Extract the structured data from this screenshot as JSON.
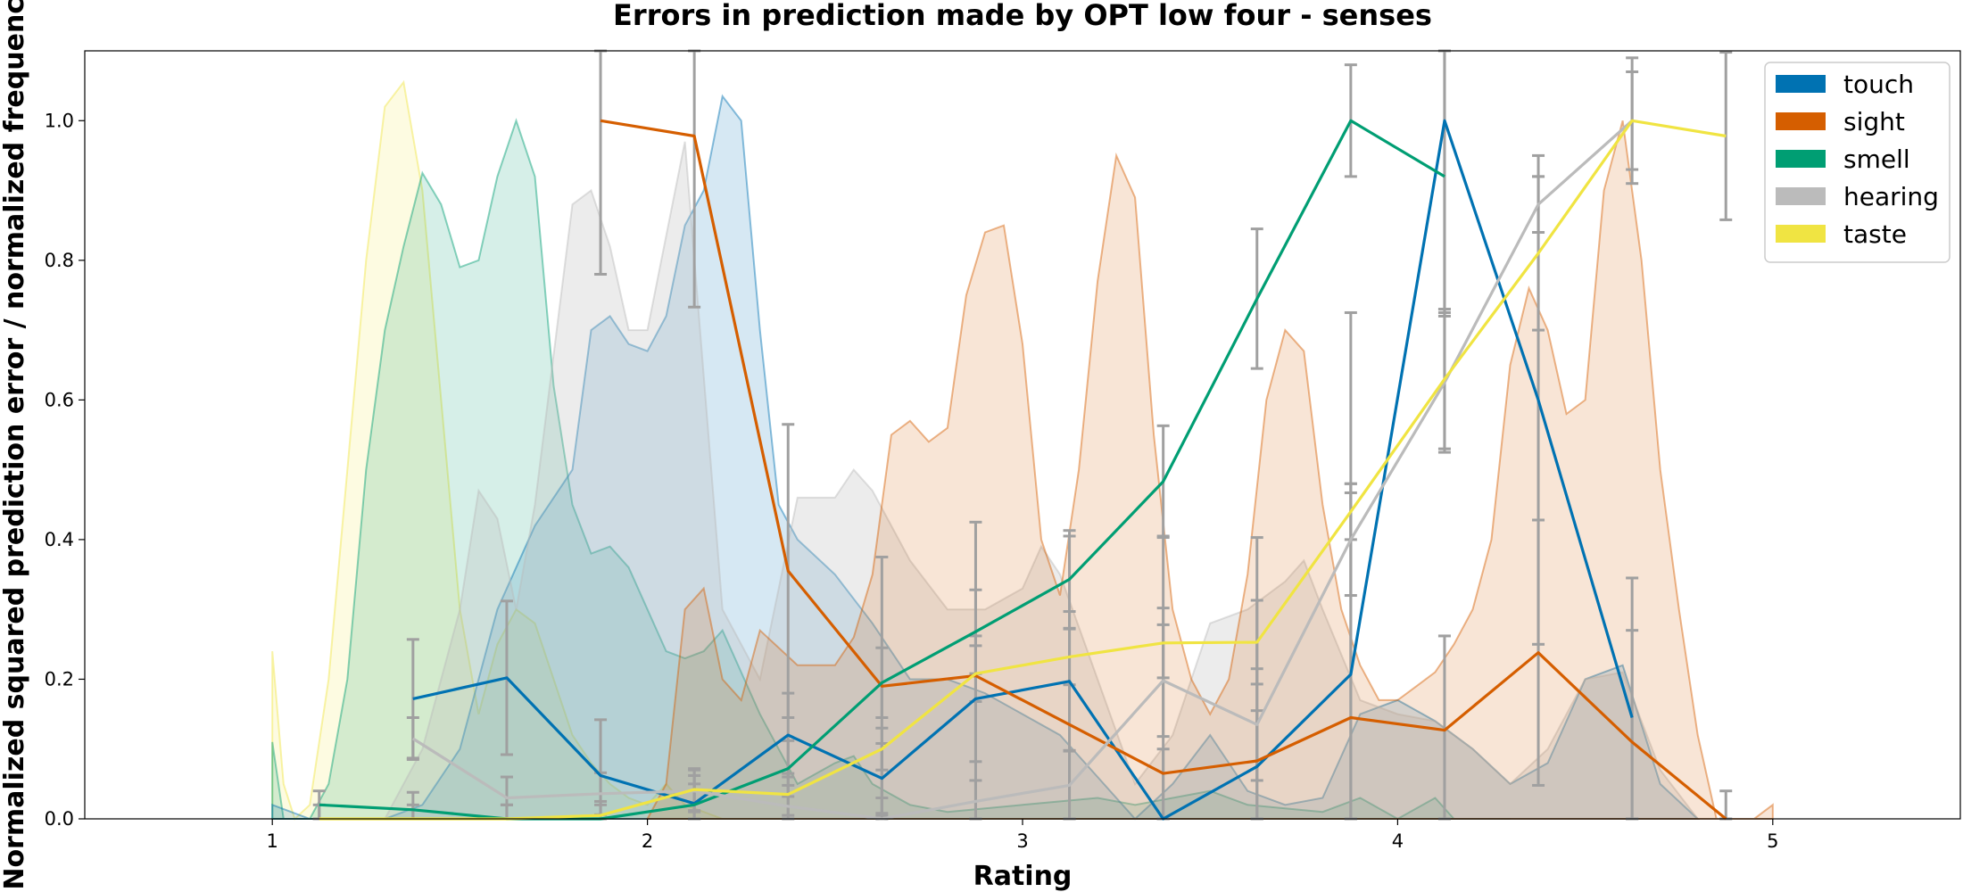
{
  "chart_data": {
    "type": "line",
    "title": "Errors in prediction made by OPT low four - senses",
    "xlabel": "Rating",
    "ylabel": "Normalized squared prediction error / normalized frequency",
    "xlim": [
      0.5,
      5.5
    ],
    "ylim": [
      0,
      1.1
    ],
    "xticks": [
      "1",
      "2",
      "3",
      "4",
      "5"
    ],
    "yticks": [
      "0.0",
      "0.2",
      "0.4",
      "0.6",
      "0.8",
      "1.0"
    ],
    "legend_position": "top-right",
    "grid": false,
    "colors": {
      "touch": "#0072b2",
      "sight": "#d55e00",
      "smell": "#009e73",
      "hearing": "#bbbbbb",
      "taste": "#f0e442",
      "error_bar": "#a0a0a0"
    },
    "series": [
      {
        "name": "touch",
        "x": [
          1.375,
          1.625,
          1.875,
          2.125,
          2.375,
          2.625,
          2.875,
          3.125,
          3.375,
          3.625,
          3.875,
          4.125,
          4.375,
          4.625
        ],
        "y": [
          0.172,
          0.202,
          0.062,
          0.022,
          0.12,
          0.058,
          0.172,
          0.197,
          0.0,
          0.075,
          0.207,
          1.0,
          0.6,
          0.145
        ],
        "err": [
          0.085,
          0.11,
          0.08,
          0.04,
          0.06,
          0.05,
          0.09,
          0.1,
          0.1,
          0.08,
          0.26,
          0.27,
          0.35,
          0.2
        ]
      },
      {
        "name": "sight",
        "x": [
          1.875,
          2.125,
          2.375,
          2.625,
          2.875,
          3.125,
          3.375,
          3.625,
          3.875,
          4.125,
          4.375,
          4.625,
          4.875
        ],
        "y": [
          1.0,
          0.978,
          0.355,
          0.19,
          0.205,
          0.135,
          0.065,
          0.083,
          0.145,
          0.127,
          0.238,
          0.11,
          0.0
        ],
        "err": [
          0.22,
          0.245,
          0.21,
          0.185,
          0.22,
          0.27,
          0.34,
          0.32,
          0.58,
          0.135,
          0.19,
          0.16,
          0.04
        ]
      },
      {
        "name": "smell",
        "x": [
          1.125,
          1.375,
          1.625,
          1.875,
          2.125,
          2.375,
          2.625,
          2.875,
          3.125,
          3.375,
          3.625,
          3.875,
          4.125
        ],
        "y": [
          0.02,
          0.013,
          0.0,
          0.0,
          0.02,
          0.072,
          0.195,
          0.268,
          0.343,
          0.483,
          0.745,
          1.0,
          0.92
        ],
        "err": [
          0.02,
          0.025,
          0.02,
          0.02,
          0.03,
          0.04,
          0.05,
          0.06,
          0.07,
          0.08,
          0.1,
          0.08,
          0.2
        ]
      },
      {
        "name": "hearing",
        "x": [
          1.375,
          1.625,
          1.875,
          2.125,
          2.375,
          2.625,
          2.875,
          3.125,
          3.375,
          3.625,
          3.875,
          4.125,
          4.375,
          4.625
        ],
        "y": [
          0.115,
          0.03,
          0.036,
          0.04,
          0.018,
          0.0,
          0.025,
          0.048,
          0.198,
          0.135,
          0.4,
          0.625,
          0.88,
          1.0
        ],
        "err": [
          0.03,
          0.03,
          0.03,
          0.03,
          0.03,
          0.03,
          0.03,
          0.05,
          0.08,
          0.08,
          0.08,
          0.1,
          0.04,
          0.09
        ]
      },
      {
        "name": "taste",
        "x": [
          1.125,
          1.375,
          1.625,
          1.875,
          2.125,
          2.375,
          2.625,
          2.875,
          3.125,
          3.375,
          3.625,
          3.875,
          4.125,
          4.375,
          4.625,
          4.875
        ],
        "y": [
          0.0,
          0.0,
          0.0,
          0.005,
          0.042,
          0.035,
          0.1,
          0.208,
          0.232,
          0.252,
          0.253,
          0.44,
          0.63,
          0.81,
          1.0,
          0.978
        ],
        "err": [
          0.02,
          0.02,
          0.02,
          0.02,
          0.03,
          0.03,
          0.03,
          0.04,
          0.04,
          0.05,
          0.06,
          0.04,
          0.1,
          0.11,
          0.07,
          0.12
        ]
      }
    ],
    "density": [
      {
        "name": "taste",
        "x": [
          1.0,
          1.03,
          1.06,
          1.1,
          1.15,
          1.2,
          1.25,
          1.3,
          1.35,
          1.4,
          1.45,
          1.5,
          1.55,
          1.6,
          1.65,
          1.7,
          1.75,
          1.8,
          1.85,
          1.9,
          1.95,
          2.0,
          2.05,
          2.1,
          2.2,
          2.3
        ],
        "y": [
          0.24,
          0.05,
          0.0,
          0.02,
          0.2,
          0.5,
          0.8,
          1.02,
          1.055,
          0.9,
          0.6,
          0.3,
          0.15,
          0.25,
          0.3,
          0.28,
          0.2,
          0.12,
          0.08,
          0.05,
          0.03,
          0.02,
          0.05,
          0.02,
          0.0,
          0.0
        ]
      },
      {
        "name": "smell",
        "x": [
          1.0,
          1.03,
          1.06,
          1.1,
          1.15,
          1.2,
          1.25,
          1.3,
          1.35,
          1.4,
          1.45,
          1.5,
          1.55,
          1.6,
          1.65,
          1.7,
          1.75,
          1.8,
          1.85,
          1.9,
          1.95,
          2.0,
          2.05,
          2.1,
          2.15,
          2.2,
          2.3,
          2.4,
          2.5,
          2.55,
          2.6,
          2.7,
          2.8,
          3.0,
          3.2,
          3.3,
          3.5,
          3.6,
          3.8,
          3.9,
          4.0,
          4.1,
          4.15,
          4.3
        ],
        "y": [
          0.11,
          0.0,
          0.0,
          0.0,
          0.05,
          0.2,
          0.5,
          0.7,
          0.82,
          0.925,
          0.88,
          0.79,
          0.8,
          0.92,
          1.0,
          0.92,
          0.62,
          0.45,
          0.38,
          0.39,
          0.36,
          0.3,
          0.24,
          0.23,
          0.24,
          0.27,
          0.15,
          0.05,
          0.08,
          0.09,
          0.05,
          0.02,
          0.01,
          0.02,
          0.03,
          0.02,
          0.04,
          0.02,
          0.01,
          0.03,
          0.0,
          0.03,
          0.0,
          0.0
        ]
      },
      {
        "name": "touch",
        "x": [
          1.0,
          1.1,
          1.2,
          1.3,
          1.4,
          1.5,
          1.6,
          1.7,
          1.8,
          1.85,
          1.9,
          1.95,
          2.0,
          2.05,
          2.1,
          2.15,
          2.2,
          2.25,
          2.3,
          2.35,
          2.4,
          2.5,
          2.6,
          2.7,
          2.8,
          2.9,
          3.0,
          3.1,
          3.2,
          3.3,
          3.4,
          3.5,
          3.6,
          3.7,
          3.8,
          3.9,
          4.0,
          4.1,
          4.2,
          4.3,
          4.4,
          4.5,
          4.6,
          4.7,
          4.8
        ],
        "y": [
          0.02,
          0.0,
          0.0,
          0.0,
          0.02,
          0.1,
          0.3,
          0.42,
          0.5,
          0.7,
          0.72,
          0.68,
          0.67,
          0.72,
          0.85,
          0.9,
          1.035,
          1.0,
          0.7,
          0.45,
          0.4,
          0.35,
          0.28,
          0.2,
          0.2,
          0.18,
          0.15,
          0.12,
          0.06,
          0.0,
          0.05,
          0.12,
          0.04,
          0.02,
          0.03,
          0.15,
          0.17,
          0.14,
          0.1,
          0.05,
          0.08,
          0.2,
          0.22,
          0.05,
          0.0
        ]
      },
      {
        "name": "hearing",
        "x": [
          1.3,
          1.4,
          1.5,
          1.55,
          1.6,
          1.65,
          1.7,
          1.8,
          1.85,
          1.9,
          1.95,
          2.0,
          2.1,
          2.2,
          2.3,
          2.4,
          2.5,
          2.55,
          2.6,
          2.7,
          2.8,
          2.9,
          3.0,
          3.05,
          3.1,
          3.2,
          3.3,
          3.4,
          3.5,
          3.6,
          3.7,
          3.75,
          3.8,
          3.9,
          4.0,
          4.1,
          4.2,
          4.3,
          4.4,
          4.5,
          4.6,
          4.7,
          4.8
        ],
        "y": [
          0.0,
          0.1,
          0.3,
          0.47,
          0.43,
          0.3,
          0.45,
          0.88,
          0.9,
          0.82,
          0.7,
          0.7,
          0.97,
          0.3,
          0.2,
          0.46,
          0.46,
          0.5,
          0.47,
          0.37,
          0.3,
          0.3,
          0.33,
          0.39,
          0.35,
          0.2,
          0.05,
          0.12,
          0.28,
          0.3,
          0.34,
          0.37,
          0.3,
          0.17,
          0.15,
          0.14,
          0.1,
          0.05,
          0.1,
          0.2,
          0.21,
          0.07,
          0.0
        ]
      },
      {
        "name": "sight",
        "x": [
          2.0,
          2.05,
          2.1,
          2.15,
          2.2,
          2.25,
          2.3,
          2.4,
          2.5,
          2.55,
          2.6,
          2.65,
          2.7,
          2.75,
          2.8,
          2.85,
          2.9,
          2.95,
          3.0,
          3.05,
          3.1,
          3.15,
          3.2,
          3.25,
          3.3,
          3.35,
          3.4,
          3.45,
          3.5,
          3.55,
          3.6,
          3.65,
          3.7,
          3.75,
          3.8,
          3.85,
          3.9,
          3.95,
          4.0,
          4.05,
          4.1,
          4.15,
          4.2,
          4.25,
          4.3,
          4.35,
          4.4,
          4.45,
          4.5,
          4.55,
          4.6,
          4.65,
          4.7,
          4.75,
          4.8,
          4.85,
          4.9,
          4.95,
          5.0
        ],
        "y": [
          0.0,
          0.05,
          0.3,
          0.33,
          0.2,
          0.17,
          0.27,
          0.22,
          0.22,
          0.26,
          0.35,
          0.55,
          0.57,
          0.54,
          0.56,
          0.75,
          0.84,
          0.85,
          0.68,
          0.4,
          0.32,
          0.5,
          0.77,
          0.95,
          0.89,
          0.55,
          0.3,
          0.2,
          0.15,
          0.2,
          0.35,
          0.6,
          0.7,
          0.67,
          0.45,
          0.3,
          0.22,
          0.17,
          0.17,
          0.19,
          0.21,
          0.25,
          0.3,
          0.4,
          0.65,
          0.76,
          0.7,
          0.58,
          0.6,
          0.9,
          1.0,
          0.8,
          0.5,
          0.3,
          0.12,
          0.0,
          0.0,
          0.0,
          0.02
        ]
      }
    ]
  }
}
